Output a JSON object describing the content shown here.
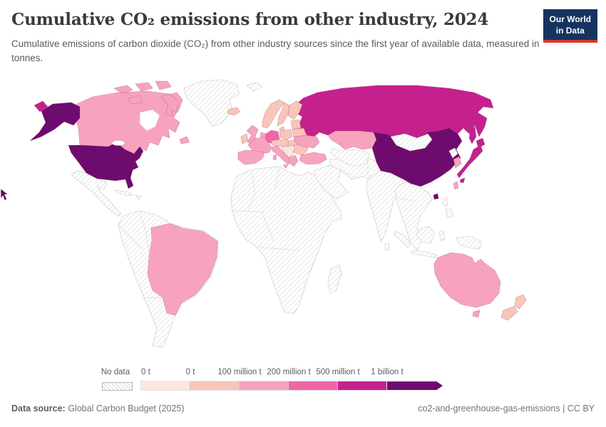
{
  "header": {
    "title": "Cumulative CO₂ emissions from other industry, 2024",
    "logo": {
      "line1": "Our World",
      "line2": "in Data",
      "bg": "#16335f",
      "accent": "#d6382b"
    }
  },
  "subtitle": "Cumulative emissions of carbon dioxide (CO₂) from other industry sources since the first year of available data, measured in tonnes.",
  "chart_data": {
    "type": "choropleth-map",
    "title": "Cumulative CO₂ emissions from other industry, 2024",
    "year": 2024,
    "unit": "tonnes",
    "legend": {
      "no_data_label": "No data",
      "tick_labels": [
        "0 t",
        "0 t",
        "100 million t",
        "200 million t",
        "500 million t",
        "1 billion t"
      ],
      "thresholds_tonnes": [
        0,
        0,
        100000000,
        200000000,
        500000000,
        1000000000
      ],
      "band_colors": [
        "#fbe8dc",
        "#f9c5b9",
        "#f7a3bd",
        "#ee66a5",
        "#c4208e",
        "#6e0b6e"
      ],
      "no_data_pattern": "diagonal-hatch"
    },
    "region_bands": {
      "united-states": 6,
      "china": 6,
      "russia": 5,
      "japan": 5,
      "germany": 4,
      "canada": 3,
      "brazil": 3,
      "australia": 3,
      "kazakhstan": 3,
      "ukraine": 3,
      "turkey": 3,
      "france": 3,
      "iberia": 3,
      "italy": 3,
      "united-kingdom": 3,
      "greece": 3,
      "south-korea": 3,
      "taiwan": 3,
      "benelux": 3,
      "norway": 2,
      "sweden": 2,
      "finland": 2,
      "denmark": 2,
      "iceland": 2,
      "ireland": 2,
      "poland": 2,
      "baltics": 2,
      "belarus": 2,
      "central-europe": 2,
      "hungary-slovakia": 2,
      "romania-bulgaria": 2,
      "new-zealand": 2,
      "balkans": 1
    },
    "no_data_regions": [
      "greenland",
      "svalbard",
      "mexico-central-america",
      "caribbean",
      "south-america-other",
      "africa",
      "madagascar",
      "middle-east-arabia",
      "iran-pakistan",
      "central-asia",
      "india",
      "sri-lanka",
      "southeast-asia",
      "mongolia",
      "north-korea",
      "philippines",
      "indonesia-png"
    ]
  },
  "footer": {
    "source_label": "Data source:",
    "source_value": " Global Carbon Budget (2025)",
    "right_text": "co2-and-greenhouse-gas-emissions | CC BY"
  }
}
